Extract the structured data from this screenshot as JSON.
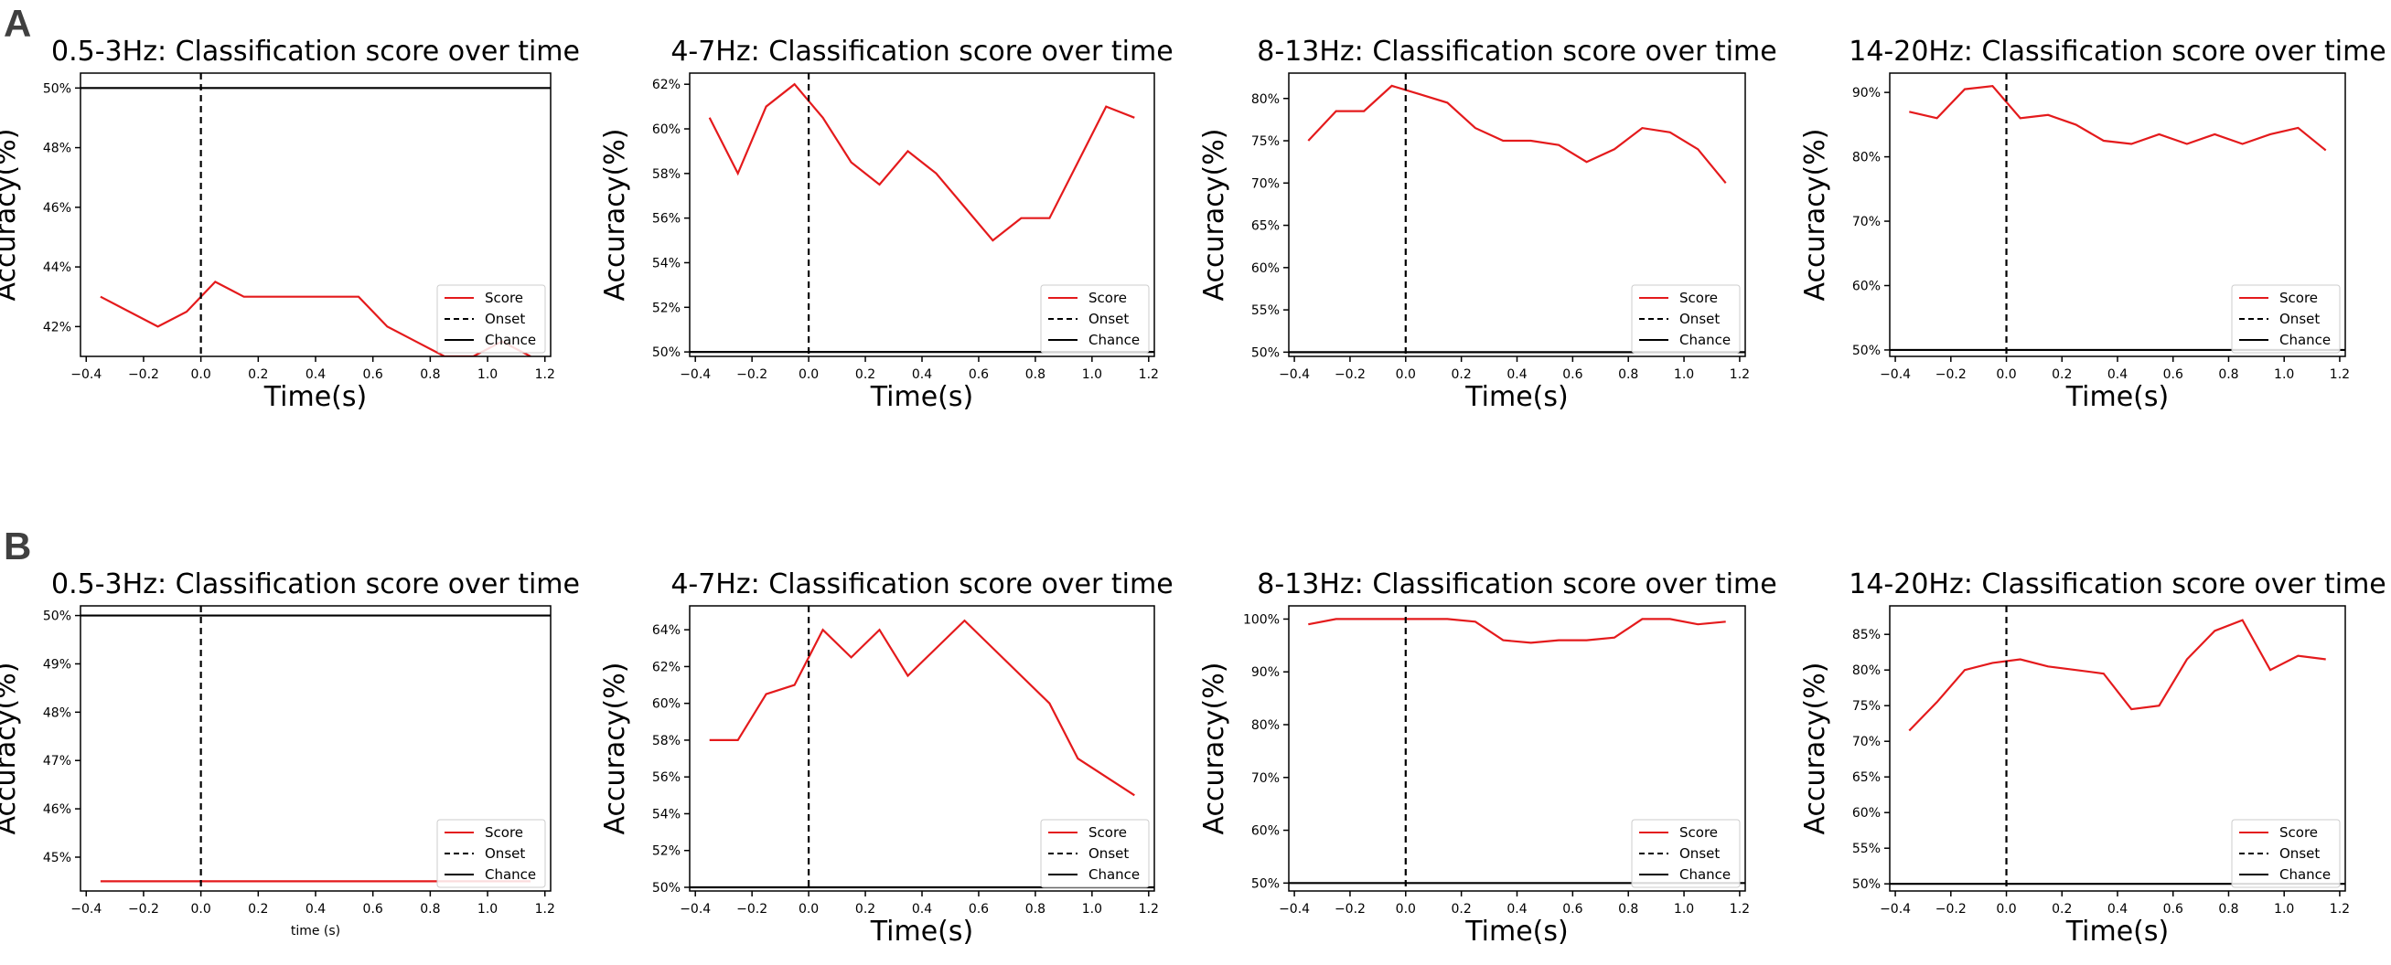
{
  "panel_labels": [
    "A",
    "B"
  ],
  "legend_labels": [
    "Score",
    "Onset",
    "Chance"
  ],
  "colors": {
    "score": "#e41a1c",
    "onset": "#000000",
    "chance": "#000000",
    "axes": "#000000"
  },
  "chart_data": [
    {
      "type": "line",
      "panel": "A",
      "title": "0.5-3Hz: Classification score over time",
      "xlabel": "Time(s)",
      "ylabel": "Accuracy(%)",
      "xlim": [
        -0.42,
        1.22
      ],
      "ylim": [
        41.0,
        50.5
      ],
      "x_ticks": [
        -0.4,
        -0.2,
        0.0,
        0.2,
        0.4,
        0.6,
        0.8,
        1.0,
        1.2
      ],
      "x_tick_labels": [
        "−0.4",
        "−0.2",
        "0.0",
        "0.2",
        "0.4",
        "0.6",
        "0.8",
        "1.0",
        "1.2"
      ],
      "y_ticks": [
        42,
        44,
        46,
        48,
        50
      ],
      "y_tick_labels": [
        "42%",
        "44%",
        "46%",
        "48%",
        "50%"
      ],
      "x": [
        -0.35,
        -0.15,
        -0.05,
        0.05,
        0.15,
        0.25,
        0.35,
        0.45,
        0.55,
        0.65,
        0.75,
        0.85,
        0.95,
        1.05,
        1.15
      ],
      "series": [
        {
          "name": "Score",
          "values": [
            43.0,
            42.0,
            42.5,
            43.5,
            43.0,
            43.0,
            43.0,
            43.0,
            43.0,
            42.0,
            41.5,
            41.0,
            41.0,
            41.5,
            41.0
          ]
        }
      ],
      "onset_x": 0.0,
      "chance_y": 50,
      "legend_position": "lower-right",
      "grid": false
    },
    {
      "type": "line",
      "panel": "A",
      "title": "4-7Hz: Classification score over time",
      "xlabel": "Time(s)",
      "ylabel": "Accuracy(%)",
      "xlim": [
        -0.42,
        1.22
      ],
      "ylim": [
        49.8,
        62.5
      ],
      "x_ticks": [
        -0.4,
        -0.2,
        0.0,
        0.2,
        0.4,
        0.6,
        0.8,
        1.0,
        1.2
      ],
      "x_tick_labels": [
        "−0.4",
        "−0.2",
        "0.0",
        "0.2",
        "0.4",
        "0.6",
        "0.8",
        "1.0",
        "1.2"
      ],
      "y_ticks": [
        50,
        52,
        54,
        56,
        58,
        60,
        62
      ],
      "y_tick_labels": [
        "50%",
        "52%",
        "54%",
        "56%",
        "58%",
        "60%",
        "62%"
      ],
      "x": [
        -0.35,
        -0.25,
        -0.15,
        -0.05,
        0.05,
        0.15,
        0.25,
        0.35,
        0.45,
        0.55,
        0.65,
        0.75,
        0.85,
        0.95,
        1.05,
        1.15
      ],
      "series": [
        {
          "name": "Score",
          "values": [
            60.5,
            58.0,
            61.0,
            62.0,
            60.5,
            58.5,
            57.5,
            59.0,
            58.0,
            56.5,
            55.0,
            56.0,
            56.0,
            58.5,
            61.0,
            60.5
          ]
        }
      ],
      "onset_x": 0.0,
      "chance_y": 50,
      "legend_position": "lower-right",
      "grid": false
    },
    {
      "type": "line",
      "panel": "A",
      "title": "8-13Hz: Classification score over time",
      "xlabel": "Time(s)",
      "ylabel": "Accuracy(%)",
      "xlim": [
        -0.42,
        1.22
      ],
      "ylim": [
        49.5,
        83.0
      ],
      "x_ticks": [
        -0.4,
        -0.2,
        0.0,
        0.2,
        0.4,
        0.6,
        0.8,
        1.0,
        1.2
      ],
      "x_tick_labels": [
        "−0.4",
        "−0.2",
        "0.0",
        "0.2",
        "0.4",
        "0.6",
        "0.8",
        "1.0",
        "1.2"
      ],
      "y_ticks": [
        50,
        55,
        60,
        65,
        70,
        75,
        80
      ],
      "y_tick_labels": [
        "50%",
        "55%",
        "60%",
        "65%",
        "70%",
        "75%",
        "80%"
      ],
      "x": [
        -0.35,
        -0.25,
        -0.15,
        -0.05,
        0.05,
        0.15,
        0.25,
        0.35,
        0.45,
        0.55,
        0.65,
        0.75,
        0.85,
        0.95,
        1.05,
        1.15
      ],
      "series": [
        {
          "name": "Score",
          "values": [
            75.0,
            78.5,
            78.5,
            81.5,
            80.5,
            79.5,
            76.5,
            75.0,
            75.0,
            74.5,
            72.5,
            74.0,
            76.5,
            76.0,
            74.0,
            70.0
          ]
        }
      ],
      "onset_x": 0.0,
      "chance_y": 50,
      "legend_position": "lower-right",
      "grid": false
    },
    {
      "type": "line",
      "panel": "A",
      "title": "14-20Hz: Classification score over time",
      "xlabel": "Time(s)",
      "ylabel": "Accuracy(%)",
      "xlim": [
        -0.42,
        1.22
      ],
      "ylim": [
        49.0,
        93.0
      ],
      "x_ticks": [
        -0.4,
        -0.2,
        0.0,
        0.2,
        0.4,
        0.6,
        0.8,
        1.0,
        1.2
      ],
      "x_tick_labels": [
        "−0.4",
        "−0.2",
        "0.0",
        "0.2",
        "0.4",
        "0.6",
        "0.8",
        "1.0",
        "1.2"
      ],
      "y_ticks": [
        50,
        60,
        70,
        80,
        90
      ],
      "y_tick_labels": [
        "50%",
        "60%",
        "70%",
        "80%",
        "90%"
      ],
      "x": [
        -0.35,
        -0.25,
        -0.15,
        -0.05,
        0.05,
        0.15,
        0.25,
        0.35,
        0.45,
        0.55,
        0.65,
        0.75,
        0.85,
        0.95,
        1.05,
        1.15
      ],
      "series": [
        {
          "name": "Score",
          "values": [
            87.0,
            86.0,
            90.5,
            91.0,
            86.0,
            86.5,
            85.0,
            82.5,
            82.0,
            83.5,
            82.0,
            83.5,
            82.0,
            83.5,
            84.5,
            81.0
          ]
        }
      ],
      "onset_x": 0.0,
      "chance_y": 50,
      "legend_position": "lower-right",
      "grid": false
    },
    {
      "type": "line",
      "panel": "B",
      "title": "0.5-3Hz: Classification score over time",
      "xlabel": "time (s)",
      "ylabel": "Accuracy(%)",
      "xlim": [
        -0.42,
        1.22
      ],
      "ylim": [
        44.3,
        50.2
      ],
      "x_ticks": [
        -0.4,
        -0.2,
        0.0,
        0.2,
        0.4,
        0.6,
        0.8,
        1.0,
        1.2
      ],
      "x_tick_labels": [
        "−0.4",
        "−0.2",
        "0.0",
        "0.2",
        "0.4",
        "0.6",
        "0.8",
        "1.0",
        "1.2"
      ],
      "y_ticks": [
        45,
        46,
        47,
        48,
        49,
        50
      ],
      "y_tick_labels": [
        "45%",
        "46%",
        "47%",
        "48%",
        "49%",
        "50%"
      ],
      "x": [
        -0.35,
        -0.25,
        -0.15,
        -0.05,
        0.05,
        0.15,
        0.25,
        0.35,
        0.45,
        0.55,
        0.65,
        0.75,
        0.85,
        0.95,
        1.05,
        1.15
      ],
      "series": [
        {
          "name": "Score",
          "values": [
            44.5,
            44.5,
            44.5,
            44.5,
            44.5,
            44.5,
            44.5,
            44.5,
            44.5,
            44.5,
            44.5,
            44.5,
            44.5,
            44.5,
            44.5,
            44.5
          ]
        }
      ],
      "onset_x": 0.0,
      "chance_y": 50,
      "legend_position": "lower-right",
      "grid": false
    },
    {
      "type": "line",
      "panel": "B",
      "title": "4-7Hz: Classification score over time",
      "xlabel": "Time(s)",
      "ylabel": "Accuracy(%)",
      "xlim": [
        -0.42,
        1.22
      ],
      "ylim": [
        49.8,
        65.3
      ],
      "x_ticks": [
        -0.4,
        -0.2,
        0.0,
        0.2,
        0.4,
        0.6,
        0.8,
        1.0,
        1.2
      ],
      "x_tick_labels": [
        "−0.4",
        "−0.2",
        "0.0",
        "0.2",
        "0.4",
        "0.6",
        "0.8",
        "1.0",
        "1.2"
      ],
      "y_ticks": [
        50,
        52,
        54,
        56,
        58,
        60,
        62,
        64
      ],
      "y_tick_labels": [
        "50%",
        "52%",
        "54%",
        "56%",
        "58%",
        "60%",
        "62%",
        "64%"
      ],
      "x": [
        -0.35,
        -0.25,
        -0.15,
        -0.05,
        0.05,
        0.15,
        0.25,
        0.35,
        0.55,
        0.85,
        0.95,
        1.15
      ],
      "series": [
        {
          "name": "Score",
          "values": [
            58.0,
            58.0,
            60.5,
            61.0,
            64.0,
            62.5,
            64.0,
            61.5,
            64.5,
            60.0,
            57.0,
            55.0
          ]
        }
      ],
      "onset_x": 0.0,
      "chance_y": 50,
      "legend_position": "lower-right",
      "grid": false
    },
    {
      "type": "line",
      "panel": "B",
      "title": "8-13Hz: Classification score over time",
      "xlabel": "Time(s)",
      "ylabel": "Accuracy(%)",
      "xlim": [
        -0.42,
        1.22
      ],
      "ylim": [
        48.5,
        102.5
      ],
      "x_ticks": [
        -0.4,
        -0.2,
        0.0,
        0.2,
        0.4,
        0.6,
        0.8,
        1.0,
        1.2
      ],
      "x_tick_labels": [
        "−0.4",
        "−0.2",
        "0.0",
        "0.2",
        "0.4",
        "0.6",
        "0.8",
        "1.0",
        "1.2"
      ],
      "y_ticks": [
        50,
        60,
        70,
        80,
        90,
        100
      ],
      "y_tick_labels": [
        "50%",
        "60%",
        "70%",
        "80%",
        "90%",
        "100%"
      ],
      "x": [
        -0.35,
        -0.25,
        -0.15,
        -0.05,
        0.05,
        0.15,
        0.25,
        0.35,
        0.45,
        0.55,
        0.65,
        0.75,
        0.85,
        0.95,
        1.05,
        1.15
      ],
      "series": [
        {
          "name": "Score",
          "values": [
            99.0,
            100.0,
            100.0,
            100.0,
            100.0,
            100.0,
            99.5,
            96.0,
            95.5,
            96.0,
            96.0,
            96.5,
            100.0,
            100.0,
            99.0,
            99.5
          ]
        }
      ],
      "onset_x": 0.0,
      "chance_y": 50,
      "legend_position": "lower-right",
      "grid": false
    },
    {
      "type": "line",
      "panel": "B",
      "title": "14-20Hz: Classification score over time",
      "xlabel": "Time(s)",
      "ylabel": "Accuracy(%)",
      "xlim": [
        -0.42,
        1.22
      ],
      "ylim": [
        49.0,
        89.0
      ],
      "x_ticks": [
        -0.4,
        -0.2,
        0.0,
        0.2,
        0.4,
        0.6,
        0.8,
        1.0,
        1.2
      ],
      "x_tick_labels": [
        "−0.4",
        "−0.2",
        "0.0",
        "0.2",
        "0.4",
        "0.6",
        "0.8",
        "1.0",
        "1.2"
      ],
      "y_ticks": [
        50,
        55,
        60,
        65,
        70,
        75,
        80,
        85
      ],
      "y_tick_labels": [
        "50%",
        "55%",
        "60%",
        "65%",
        "70%",
        "75%",
        "80%",
        "85%"
      ],
      "x": [
        -0.35,
        -0.25,
        -0.15,
        -0.05,
        0.05,
        0.15,
        0.25,
        0.35,
        0.45,
        0.55,
        0.65,
        0.75,
        0.85,
        0.95,
        1.05,
        1.15
      ],
      "series": [
        {
          "name": "Score",
          "values": [
            71.5,
            75.5,
            80.0,
            81.0,
            81.5,
            80.5,
            80.0,
            79.5,
            74.5,
            75.0,
            81.5,
            85.5,
            87.0,
            80.0,
            82.0,
            81.5
          ]
        }
      ],
      "onset_x": 0.0,
      "chance_y": 50,
      "legend_position": "lower-right",
      "grid": false
    }
  ]
}
